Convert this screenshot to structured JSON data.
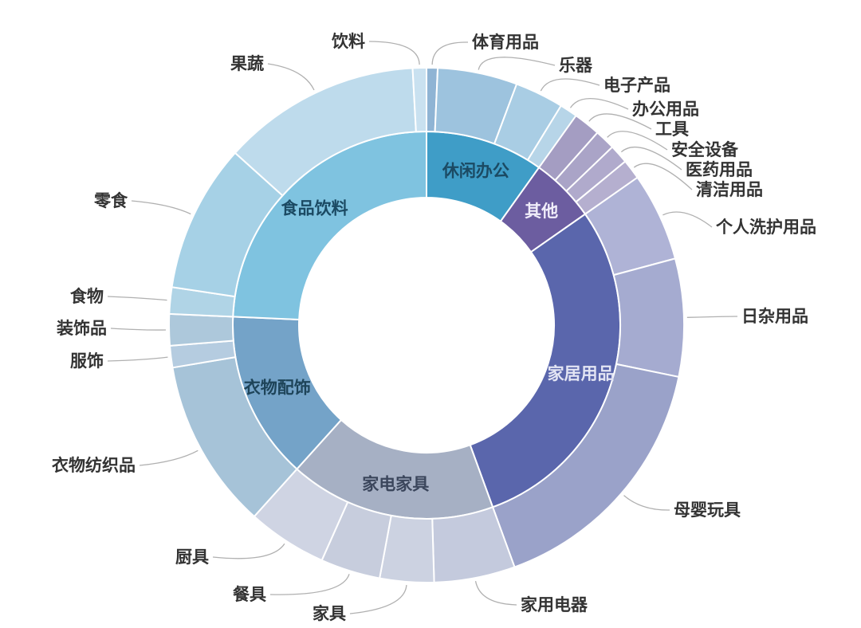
{
  "page": {
    "background": "#ffffff"
  },
  "chart_data": {
    "type": "sunburst",
    "rings": 2,
    "start_angle_deg": 0,
    "direction": "clockwise",
    "grid": false,
    "legend": "none",
    "title": "",
    "total_pct": 100,
    "categories": [
      {
        "id": "leisure-office",
        "label": "休闲办公",
        "span_deg": 35.5,
        "pct": 9.9,
        "color": "#3F9DC7",
        "label_color": "#1B4A63",
        "children": [
          {
            "id": "sports-goods",
            "label": "体育用品",
            "span_deg": 2.5,
            "pct": 0.7,
            "color": "#8FB4D4"
          },
          {
            "id": "musical-instruments",
            "label": "乐器",
            "span_deg": 18.0,
            "pct": 5.0,
            "color": "#9DC3DE"
          },
          {
            "id": "electronics",
            "label": "电子产品",
            "span_deg": 11.0,
            "pct": 3.1,
            "color": "#A9CDE4"
          },
          {
            "id": "office-supplies",
            "label": "办公用品",
            "span_deg": 4.0,
            "pct": 1.1,
            "color": "#B7D5E8"
          }
        ]
      },
      {
        "id": "other",
        "label": "其他",
        "span_deg": 19.5,
        "pct": 5.4,
        "color": "#6C5DA0",
        "label_color": "#F0EDFA",
        "children": [
          {
            "id": "tools",
            "label": "工具",
            "span_deg": 6.1,
            "pct": 1.7,
            "color": "#A49DC2"
          },
          {
            "id": "safety-equipment",
            "label": "安全设备",
            "span_deg": 4.6,
            "pct": 1.3,
            "color": "#AAA4C7"
          },
          {
            "id": "medical-supplies",
            "label": "医药用品",
            "span_deg": 4.3,
            "pct": 1.2,
            "color": "#B0AACC"
          },
          {
            "id": "cleaning-supplies",
            "label": "清洁用品",
            "span_deg": 4.5,
            "pct": 1.3,
            "color": "#B5AFCF"
          }
        ]
      },
      {
        "id": "home-goods",
        "label": "家居用品",
        "span_deg": 105.0,
        "pct": 29.2,
        "color": "#5A66AC",
        "label_color": "#E3E5F4",
        "children": [
          {
            "id": "personal-care",
            "label": "个人洗护用品",
            "span_deg": 20.0,
            "pct": 5.6,
            "color": "#AFB3D6"
          },
          {
            "id": "daily-sundries",
            "label": "日杂用品",
            "span_deg": 26.6,
            "pct": 7.4,
            "color": "#A5ABD0"
          },
          {
            "id": "mother-baby-toys",
            "label": "母婴玩具",
            "span_deg": 58.4,
            "pct": 16.2,
            "color": "#9AA2C9"
          }
        ]
      },
      {
        "id": "appliances-furniture",
        "label": "家电家具",
        "span_deg": 62.0,
        "pct": 17.2,
        "color": "#A6B0C4",
        "label_color": "#3B465C",
        "children": [
          {
            "id": "home-appliances",
            "label": "家用电器",
            "span_deg": 18.3,
            "pct": 5.1,
            "color": "#C4CADD"
          },
          {
            "id": "furniture",
            "label": "家具",
            "span_deg": 12.2,
            "pct": 3.4,
            "color": "#CCD2E1"
          },
          {
            "id": "tableware",
            "label": "餐具",
            "span_deg": 13.5,
            "pct": 3.8,
            "color": "#C7CDDD"
          },
          {
            "id": "kitchenware",
            "label": "厨具",
            "span_deg": 18.0,
            "pct": 5.0,
            "color": "#CFD4E3"
          }
        ]
      },
      {
        "id": "clothing-accessories",
        "label": "衣物配饰",
        "span_deg": 50.5,
        "pct": 14.0,
        "color": "#74A3C8",
        "label_color": "#1E4459",
        "children": [
          {
            "id": "clothing-textiles",
            "label": "衣物纺织品",
            "span_deg": 38.5,
            "pct": 10.7,
            "color": "#A6C3D8"
          },
          {
            "id": "apparel",
            "label": "服饰",
            "span_deg": 4.9,
            "pct": 1.4,
            "color": "#B5CCE0"
          },
          {
            "id": "decorations",
            "label": "装饰品",
            "span_deg": 7.1,
            "pct": 2.0,
            "color": "#ADC8DB"
          }
        ]
      },
      {
        "id": "food-beverage",
        "label": "食品饮料",
        "span_deg": 87.5,
        "pct": 24.3,
        "color": "#7FC3E0",
        "label_color": "#1B4A63",
        "children": [
          {
            "id": "food",
            "label": "食物",
            "span_deg": 6.0,
            "pct": 1.7,
            "color": "#B0D4E6"
          },
          {
            "id": "snacks",
            "label": "零食",
            "span_deg": 33.5,
            "pct": 9.3,
            "color": "#A6D1E6"
          },
          {
            "id": "fruits-vegetables",
            "label": "果蔬",
            "span_deg": 44.9,
            "pct": 12.5,
            "color": "#BEDBEC"
          },
          {
            "id": "beverages",
            "label": "饮料",
            "span_deg": 3.1,
            "pct": 0.9,
            "color": "#C9E1F0"
          }
        ]
      }
    ]
  }
}
